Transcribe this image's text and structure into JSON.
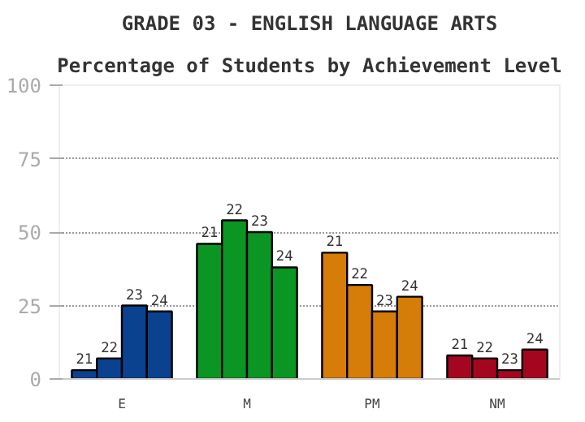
{
  "chart_data": {
    "type": "bar",
    "title": "GRADE 03 - ENGLISH LANGUAGE ARTS",
    "subtitle": "Percentage of Students by Achievement Level",
    "categories": [
      "E",
      "M",
      "PM",
      "NM"
    ],
    "series": [
      {
        "name": "21",
        "colors": [
          "#0b428f",
          "#0b9523",
          "#d57c09",
          "#a5061f"
        ],
        "values": [
          3,
          46,
          43,
          8
        ]
      },
      {
        "name": "22",
        "colors": [
          "#0b428f",
          "#0b9523",
          "#d57c09",
          "#a5061f"
        ],
        "values": [
          7,
          54,
          32,
          7
        ]
      },
      {
        "name": "23",
        "colors": [
          "#0b428f",
          "#0b9523",
          "#d57c09",
          "#a5061f"
        ],
        "values": [
          25,
          50,
          23,
          3
        ]
      },
      {
        "name": "24",
        "colors": [
          "#0b428f",
          "#0b9523",
          "#d57c09",
          "#a5061f"
        ],
        "values": [
          23,
          38,
          28,
          10
        ]
      }
    ],
    "ylim": [
      0,
      100
    ],
    "yticks": [
      0,
      25,
      50,
      75,
      100
    ],
    "grid": "y"
  }
}
